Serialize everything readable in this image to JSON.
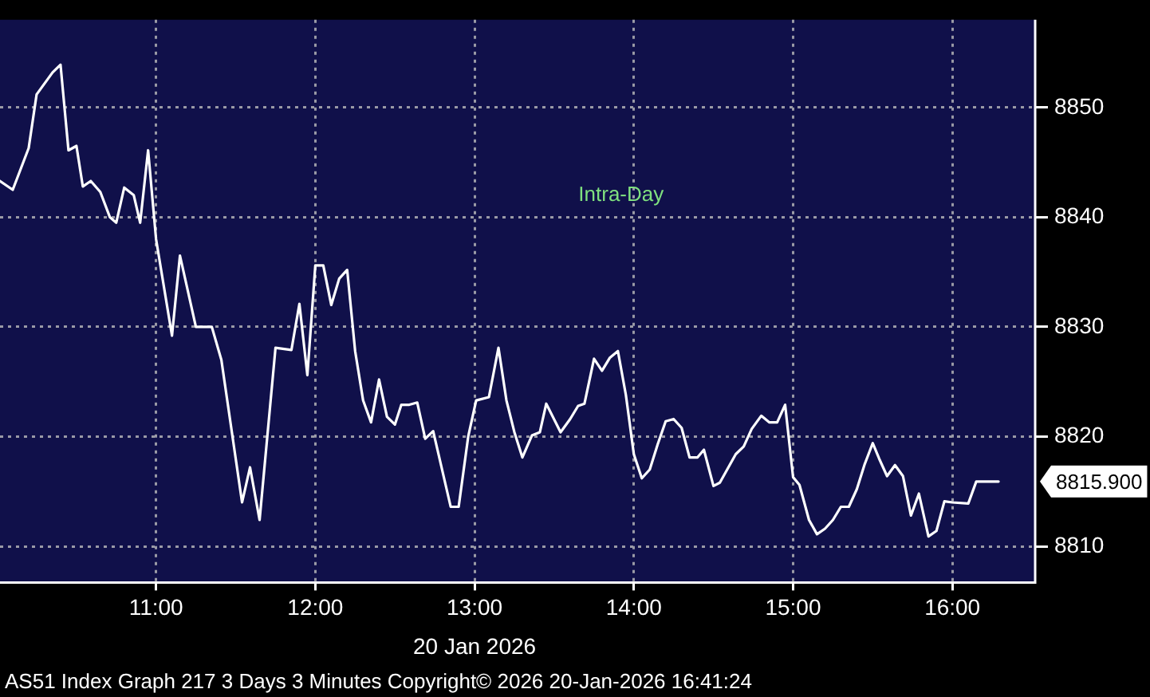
{
  "chart_data": {
    "type": "line",
    "title": "Intra-Day",
    "xlabel": "20 Jan 2026",
    "annotations": [
      "AS51 Index Graph 217 3 Days 3 Minutes Copyright© 2026 20-Jan-2026 16:41:24",
      {
        "text": "8815.900",
        "x": 16.29,
        "y": 8815.9
      }
    ],
    "x": [
      10.02,
      10.1,
      10.2,
      10.25,
      10.35,
      10.4,
      10.45,
      10.5,
      10.54,
      10.59,
      10.65,
      10.71,
      10.75,
      10.8,
      10.86,
      10.9,
      10.95,
      11.0,
      11.1,
      11.15,
      11.25,
      11.35,
      11.41,
      11.54,
      11.59,
      11.65,
      11.75,
      11.85,
      11.9,
      11.95,
      12.0,
      12.05,
      12.1,
      12.15,
      12.2,
      12.25,
      12.3,
      12.35,
      12.4,
      12.45,
      12.5,
      12.54,
      12.59,
      12.64,
      12.69,
      12.74,
      12.85,
      12.9,
      12.96,
      13.01,
      13.09,
      13.15,
      13.2,
      13.25,
      13.3,
      13.36,
      13.41,
      13.45,
      13.54,
      13.6,
      13.65,
      13.69,
      13.75,
      13.8,
      13.85,
      13.9,
      13.95,
      14.0,
      14.05,
      14.1,
      14.15,
      14.2,
      14.25,
      14.3,
      14.35,
      14.4,
      14.44,
      14.5,
      14.54,
      14.64,
      14.69,
      14.74,
      14.8,
      14.85,
      14.9,
      14.95,
      15.0,
      15.04,
      15.1,
      15.15,
      15.2,
      15.25,
      15.3,
      15.35,
      15.4,
      15.45,
      15.5,
      15.54,
      15.59,
      15.64,
      15.69,
      15.74,
      15.79,
      15.85,
      15.9,
      15.95,
      16.0,
      16.1,
      16.15,
      16.29
    ],
    "series": [
      {
        "color": "#ffffff",
        "values": [
          8843.3,
          8842.5,
          8846.3,
          8851.2,
          8853.2,
          8853.9,
          8846.1,
          8846.5,
          8842.8,
          8843.3,
          8842.3,
          8840,
          8839.5,
          8842.7,
          8842,
          8839.5,
          8846.1,
          8838,
          8829.2,
          8836.5,
          8830,
          8830,
          8827,
          8814,
          8817.2,
          8812.4,
          8828.1,
          8827.9,
          8832.1,
          8825.6,
          8835.6,
          8835.6,
          8832,
          8834.4,
          8835.2,
          8827.8,
          8823.3,
          8821.3,
          8825.2,
          8821.8,
          8821.1,
          8822.9,
          8822.9,
          8823.1,
          8819.8,
          8820.5,
          8813.6,
          8813.6,
          8820,
          8823.3,
          8823.6,
          8828.1,
          8823.3,
          8820.4,
          8818.1,
          8820.1,
          8820.4,
          8823,
          8820.4,
          8821.6,
          8822.8,
          8823,
          8827.1,
          8826,
          8827.2,
          8827.8,
          8823.8,
          8818.4,
          8816.2,
          8817,
          8819.3,
          8821.4,
          8821.6,
          8820.8,
          8818.1,
          8818.1,
          8818.8,
          8815.5,
          8815.8,
          8818.4,
          8819.1,
          8820.7,
          8821.9,
          8821.3,
          8821.3,
          8822.9,
          8816.3,
          8815.6,
          8812.4,
          8811.1,
          8811.6,
          8812.4,
          8813.6,
          8813.6,
          8815.2,
          8817.5,
          8819.4,
          8818,
          8816.4,
          8817.4,
          8816.4,
          8812.8,
          8814.8,
          8810.9,
          8811.4,
          8814.1,
          8814,
          8813.9,
          8815.9,
          8815.9
        ]
      }
    ],
    "xlim": [
      10.02,
      16.52
    ],
    "ylim": [
      8806.7,
      8858
    ],
    "xticks": [
      {
        "value": 11,
        "label": "11:00"
      },
      {
        "value": 12,
        "label": "12:00"
      },
      {
        "value": 13,
        "label": "13:00"
      },
      {
        "value": 14,
        "label": "14:00"
      },
      {
        "value": 15,
        "label": "15:00"
      },
      {
        "value": 16,
        "label": "16:00"
      }
    ],
    "yticks": [
      8810,
      8820,
      8830,
      8840,
      8850
    ],
    "grid": true,
    "legend": false,
    "marker": "none",
    "line_style": "solid"
  }
}
